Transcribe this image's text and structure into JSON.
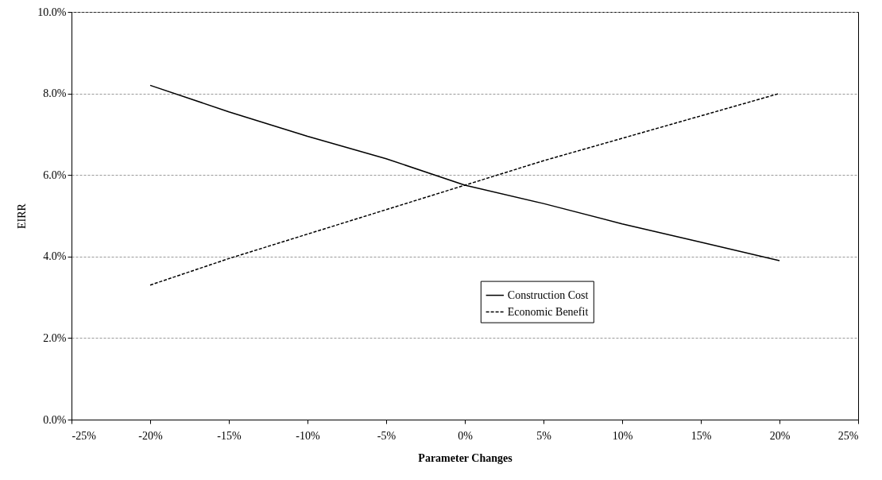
{
  "chart_data": {
    "type": "line",
    "xlabel": "Parameter Changes",
    "ylabel": "EIRR",
    "x": [
      -20,
      -15,
      -10,
      -5,
      0,
      5,
      10,
      15,
      20
    ],
    "series": [
      {
        "name": "Construction Cost",
        "color": "#000000",
        "line_style": "solid",
        "values": [
          8.2,
          7.55,
          6.95,
          6.4,
          5.75,
          5.3,
          4.8,
          4.35,
          3.9
        ]
      },
      {
        "name": "Economic Benefit",
        "color": "#000000",
        "line_style": "dashed",
        "values": [
          3.3,
          3.95,
          4.55,
          5.15,
          5.75,
          6.35,
          6.9,
          7.45,
          8.0
        ]
      }
    ],
    "xlim": [
      -25,
      25
    ],
    "xticks": [
      {
        "value": -25,
        "label": "-25%"
      },
      {
        "value": -20,
        "label": "-20%"
      },
      {
        "value": -15,
        "label": "-15%"
      },
      {
        "value": -10,
        "label": "-10%"
      },
      {
        "value": -5,
        "label": "-5%"
      },
      {
        "value": 0,
        "label": "0%"
      },
      {
        "value": 5,
        "label": "5%"
      },
      {
        "value": 10,
        "label": "10%"
      },
      {
        "value": 15,
        "label": "15%"
      },
      {
        "value": 20,
        "label": "20%"
      },
      {
        "value": 25,
        "label": "25%"
      }
    ],
    "ylim": [
      0,
      10
    ],
    "yticks": [
      {
        "value": 0,
        "label": "0.0%"
      },
      {
        "value": 2,
        "label": "2.0%"
      },
      {
        "value": 4,
        "label": "4.0%"
      },
      {
        "value": 6,
        "label": "6.0%"
      },
      {
        "value": 8,
        "label": "8.0%"
      },
      {
        "value": 10,
        "label": "10.0%"
      }
    ],
    "grid": "y",
    "legend": "bottom",
    "marker": "none"
  }
}
